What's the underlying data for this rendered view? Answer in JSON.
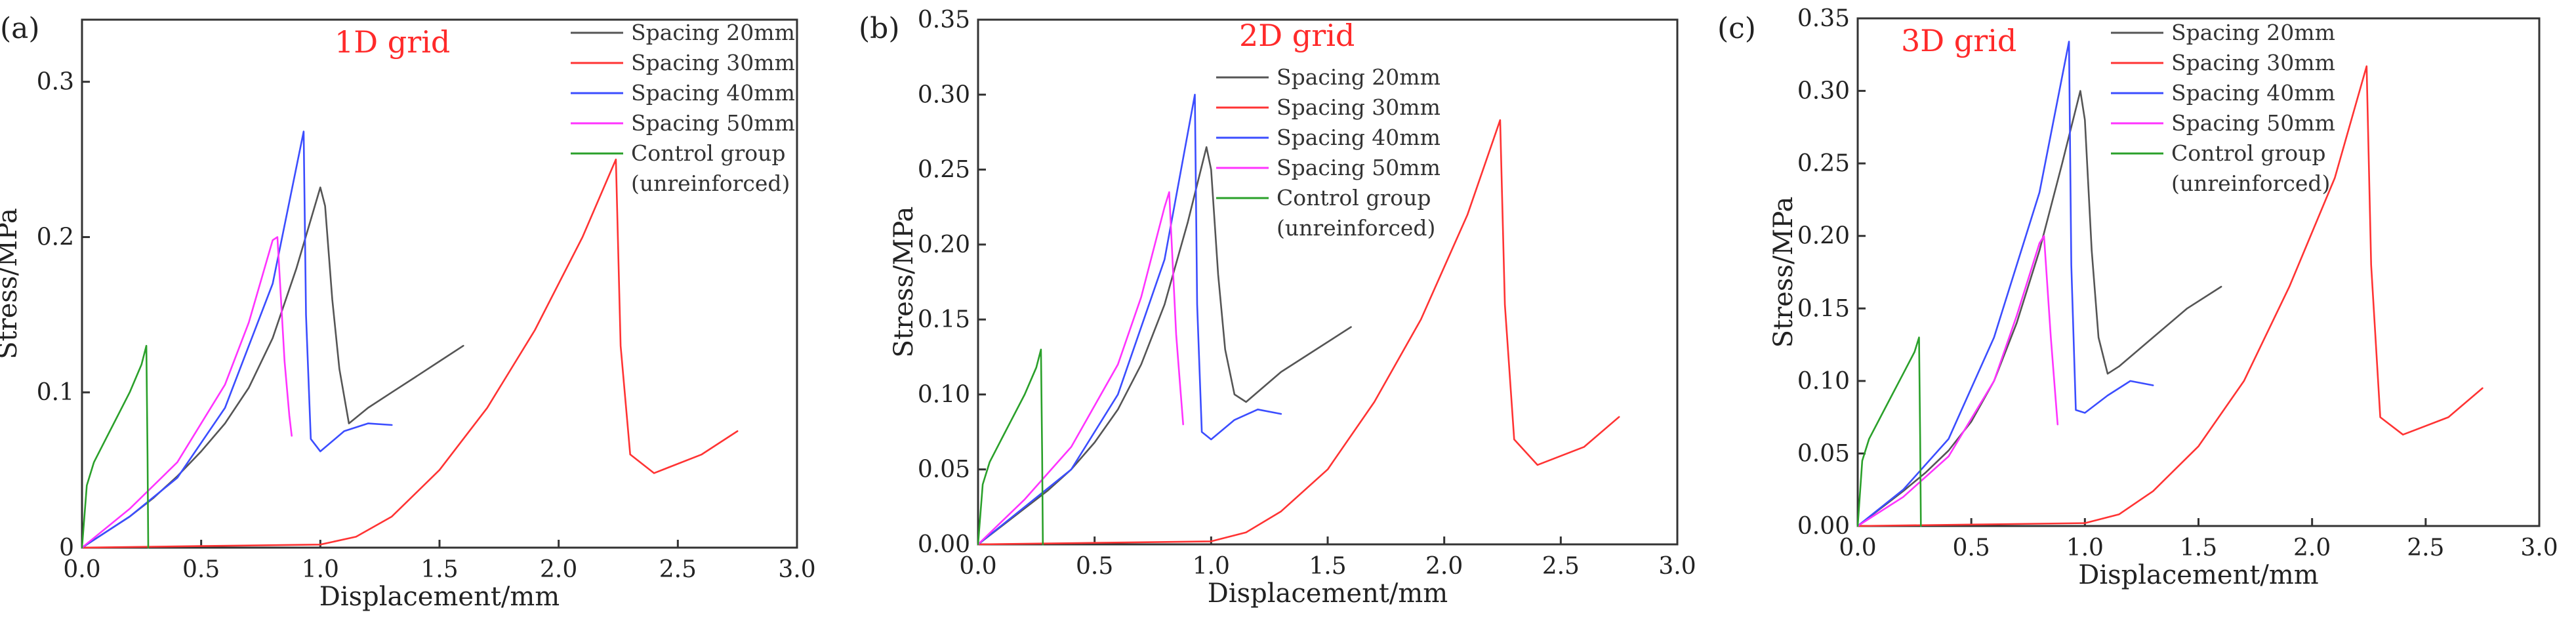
{
  "series_colors": {
    "Spacing 20mm": "#555555",
    "Spacing 30mm": "#ff3333",
    "Spacing 40mm": "#3b4dff",
    "Spacing 50mm": "#ff33ff",
    "Control group (unreinforced)": "#2aa02a"
  },
  "title_color": "#ff2a2a",
  "chart_data": [
    {
      "type": "line",
      "panel_label": "(a)",
      "title": "1D grid",
      "xlabel": "Displacement/mm",
      "ylabel": "Stress/MPa",
      "xlim": [
        0,
        3.0
      ],
      "ylim": [
        0,
        0.34
      ],
      "xticks": [
        "0.0",
        "0.5",
        "1.0",
        "1.5",
        "2.0",
        "2.5",
        "3.0"
      ],
      "yticks": [
        0,
        0.1,
        0.2,
        0.3
      ],
      "ytick_labels": [
        "0",
        "0.1",
        "0.2",
        "0.3"
      ],
      "legend_position": "top-right",
      "legend": [
        "Spacing 20mm",
        "Spacing 30mm",
        "Spacing 40mm",
        "Spacing 50mm",
        "Control group",
        "(unreinforced)"
      ],
      "series": [
        {
          "name": "Spacing 20mm",
          "x": [
            0,
            0.1,
            0.2,
            0.3,
            0.4,
            0.5,
            0.6,
            0.7,
            0.8,
            0.9,
            1.0,
            1.02,
            1.05,
            1.08,
            1.12,
            1.2,
            1.3,
            1.4,
            1.5,
            1.6
          ],
          "y": [
            0,
            0.01,
            0.02,
            0.032,
            0.046,
            0.062,
            0.08,
            0.103,
            0.135,
            0.18,
            0.232,
            0.22,
            0.16,
            0.115,
            0.08,
            0.09,
            0.1,
            0.11,
            0.12,
            0.13
          ]
        },
        {
          "name": "Spacing 30mm",
          "x": [
            0,
            0.5,
            1.0,
            1.15,
            1.3,
            1.5,
            1.7,
            1.9,
            2.1,
            2.24,
            2.26,
            2.3,
            2.4,
            2.6,
            2.75
          ],
          "y": [
            0,
            0.001,
            0.002,
            0.007,
            0.02,
            0.05,
            0.09,
            0.14,
            0.2,
            0.25,
            0.13,
            0.06,
            0.048,
            0.06,
            0.075
          ]
        },
        {
          "name": "Spacing 40mm",
          "x": [
            0,
            0.2,
            0.4,
            0.6,
            0.8,
            0.93,
            0.94,
            0.96,
            1.0,
            1.1,
            1.2,
            1.3
          ],
          "y": [
            0,
            0.02,
            0.045,
            0.09,
            0.17,
            0.268,
            0.15,
            0.07,
            0.062,
            0.075,
            0.08,
            0.079
          ]
        },
        {
          "name": "Spacing 50mm",
          "x": [
            0,
            0.2,
            0.4,
            0.6,
            0.7,
            0.8,
            0.82,
            0.85,
            0.87,
            0.88
          ],
          "y": [
            0,
            0.025,
            0.055,
            0.105,
            0.145,
            0.198,
            0.2,
            0.12,
            0.085,
            0.072
          ]
        },
        {
          "name": "Control group (unreinforced)",
          "x": [
            0,
            0.02,
            0.05,
            0.1,
            0.15,
            0.2,
            0.25,
            0.27,
            0.275,
            0.278
          ],
          "y": [
            0,
            0.04,
            0.055,
            0.07,
            0.085,
            0.1,
            0.118,
            0.13,
            0.06,
            0
          ]
        }
      ]
    },
    {
      "type": "line",
      "panel_label": "(b)",
      "title": "2D grid",
      "xlabel": "Displacement/mm",
      "ylabel": "Stress/MPa",
      "xlim": [
        0,
        3.0
      ],
      "ylim": [
        0,
        0.35
      ],
      "xticks": [
        "0.0",
        "0.5",
        "1.0",
        "1.5",
        "2.0",
        "2.5",
        "3.0"
      ],
      "yticks": [
        0,
        0.05,
        0.1,
        0.15,
        0.2,
        0.25,
        0.3,
        0.35
      ],
      "ytick_labels": [
        "0.00",
        "0.05",
        "0.10",
        "0.15",
        "0.20",
        "0.25",
        "0.30",
        "0.35"
      ],
      "legend_position": "top-right",
      "legend": [
        "Spacing 20mm",
        "Spacing 30mm",
        "Spacing 40mm",
        "Spacing 50mm",
        "Control group",
        "(unreinforced)"
      ],
      "series": [
        {
          "name": "Spacing 20mm",
          "x": [
            0,
            0.1,
            0.2,
            0.3,
            0.4,
            0.5,
            0.6,
            0.7,
            0.8,
            0.9,
            0.98,
            1.0,
            1.03,
            1.06,
            1.1,
            1.15,
            1.3,
            1.45,
            1.6
          ],
          "y": [
            0,
            0.012,
            0.024,
            0.036,
            0.05,
            0.068,
            0.09,
            0.12,
            0.16,
            0.215,
            0.265,
            0.25,
            0.18,
            0.13,
            0.1,
            0.095,
            0.115,
            0.13,
            0.145
          ]
        },
        {
          "name": "Spacing 30mm",
          "x": [
            0,
            0.5,
            1.0,
            1.15,
            1.3,
            1.5,
            1.7,
            1.9,
            2.1,
            2.24,
            2.26,
            2.3,
            2.4,
            2.6,
            2.75
          ],
          "y": [
            0,
            0.001,
            0.002,
            0.008,
            0.022,
            0.05,
            0.095,
            0.15,
            0.22,
            0.283,
            0.16,
            0.07,
            0.053,
            0.065,
            0.085
          ]
        },
        {
          "name": "Spacing 40mm",
          "x": [
            0,
            0.2,
            0.4,
            0.6,
            0.8,
            0.93,
            0.94,
            0.96,
            1.0,
            1.1,
            1.2,
            1.3
          ],
          "y": [
            0,
            0.025,
            0.05,
            0.1,
            0.19,
            0.3,
            0.16,
            0.075,
            0.07,
            0.083,
            0.09,
            0.087
          ]
        },
        {
          "name": "Spacing 50mm",
          "x": [
            0,
            0.2,
            0.4,
            0.6,
            0.7,
            0.8,
            0.82,
            0.85,
            0.87,
            0.88
          ],
          "y": [
            0,
            0.03,
            0.065,
            0.12,
            0.165,
            0.225,
            0.235,
            0.14,
            0.1,
            0.08
          ]
        },
        {
          "name": "Control group (unreinforced)",
          "x": [
            0,
            0.02,
            0.05,
            0.1,
            0.15,
            0.2,
            0.25,
            0.27,
            0.275,
            0.278
          ],
          "y": [
            0,
            0.04,
            0.055,
            0.07,
            0.085,
            0.1,
            0.118,
            0.13,
            0.06,
            0
          ]
        }
      ]
    },
    {
      "type": "line",
      "panel_label": "(c)",
      "title": "3D grid",
      "xlabel": "Displacement/mm",
      "ylabel": "Stress/MPa",
      "xlim": [
        0,
        3.0
      ],
      "ylim": [
        0,
        0.35
      ],
      "xticks": [
        "0.0",
        "0.5",
        "1.0",
        "1.5",
        "2.0",
        "2.5",
        "3.0"
      ],
      "yticks": [
        0,
        0.05,
        0.1,
        0.15,
        0.2,
        0.25,
        0.3,
        0.35
      ],
      "ytick_labels": [
        "0.00",
        "0.05",
        "0.10",
        "0.15",
        "0.20",
        "0.25",
        "0.30",
        "0.35"
      ],
      "legend_position": "top-right",
      "legend": [
        "Spacing 20mm",
        "Spacing 30mm",
        "Spacing 40mm",
        "Spacing 50mm",
        "Control group",
        "(unreinforced)"
      ],
      "series": [
        {
          "name": "Spacing 20mm",
          "x": [
            0,
            0.1,
            0.2,
            0.3,
            0.4,
            0.5,
            0.6,
            0.7,
            0.8,
            0.9,
            0.98,
            1.0,
            1.03,
            1.06,
            1.1,
            1.15,
            1.3,
            1.45,
            1.6
          ],
          "y": [
            0,
            0.012,
            0.024,
            0.037,
            0.052,
            0.072,
            0.1,
            0.14,
            0.19,
            0.25,
            0.3,
            0.28,
            0.19,
            0.13,
            0.105,
            0.11,
            0.13,
            0.15,
            0.165
          ]
        },
        {
          "name": "Spacing 30mm",
          "x": [
            0,
            0.5,
            1.0,
            1.15,
            1.3,
            1.5,
            1.7,
            1.9,
            2.1,
            2.24,
            2.26,
            2.3,
            2.4,
            2.6,
            2.75
          ],
          "y": [
            0,
            0.001,
            0.002,
            0.008,
            0.024,
            0.055,
            0.1,
            0.165,
            0.24,
            0.317,
            0.18,
            0.075,
            0.063,
            0.075,
            0.095
          ]
        },
        {
          "name": "Spacing 40mm",
          "x": [
            0,
            0.2,
            0.4,
            0.6,
            0.8,
            0.93,
            0.94,
            0.96,
            1.0,
            1.1,
            1.2,
            1.3
          ],
          "y": [
            0,
            0.025,
            0.06,
            0.13,
            0.23,
            0.334,
            0.18,
            0.08,
            0.078,
            0.09,
            0.1,
            0.097
          ]
        },
        {
          "name": "Spacing 50mm",
          "x": [
            0,
            0.2,
            0.4,
            0.6,
            0.7,
            0.8,
            0.82,
            0.85,
            0.87,
            0.88
          ],
          "y": [
            0,
            0.02,
            0.048,
            0.1,
            0.145,
            0.195,
            0.2,
            0.13,
            0.09,
            0.07
          ]
        },
        {
          "name": "Control group (unreinforced)",
          "x": [
            0,
            0.02,
            0.05,
            0.1,
            0.15,
            0.2,
            0.25,
            0.27,
            0.275,
            0.278
          ],
          "y": [
            0,
            0.045,
            0.06,
            0.075,
            0.09,
            0.105,
            0.12,
            0.13,
            0.06,
            0
          ]
        }
      ]
    }
  ]
}
